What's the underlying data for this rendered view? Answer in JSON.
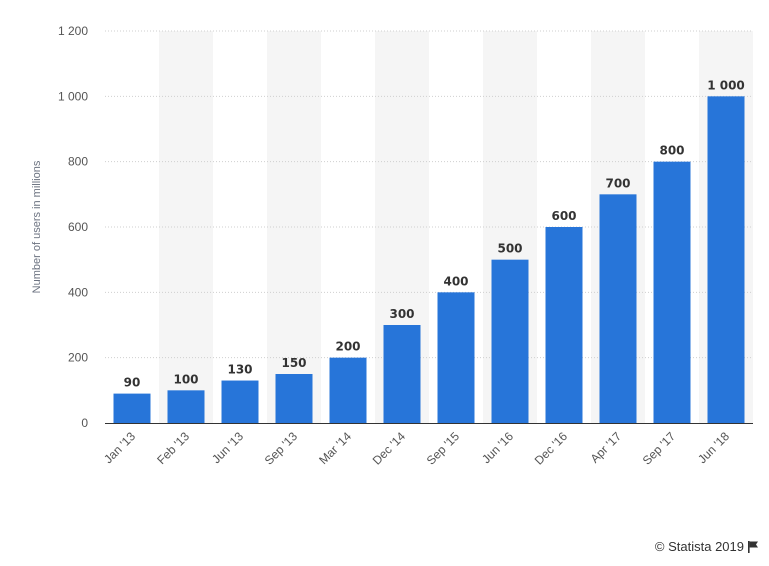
{
  "chart_data": {
    "type": "bar",
    "categories": [
      "Jan '13",
      "Feb '13",
      "Jun '13",
      "Sep '13",
      "Mar '14",
      "Dec '14",
      "Sep '15",
      "Jun '16",
      "Dec '16",
      "Apr '17",
      "Sep '17",
      "Jun '18"
    ],
    "values": [
      90,
      100,
      130,
      150,
      200,
      300,
      400,
      500,
      600,
      700,
      800,
      1000
    ],
    "value_labels": [
      "90",
      "100",
      "130",
      "150",
      "200",
      "300",
      "400",
      "500",
      "600",
      "700",
      "800",
      "1 000"
    ],
    "title": "",
    "xlabel": "",
    "ylabel": "Number of users in millions",
    "ylim": [
      0,
      1200
    ],
    "yticks": [
      0,
      200,
      400,
      600,
      800,
      1000,
      1200
    ],
    "ytick_labels": [
      "0",
      "200",
      "400",
      "600",
      "800",
      "1 000",
      "1 200"
    ],
    "grid": true,
    "bar_color": "#2775d9",
    "band_color": "#f5f5f5"
  },
  "footer": {
    "credit": "© Statista 2019",
    "credit_icon": "flag-icon"
  }
}
